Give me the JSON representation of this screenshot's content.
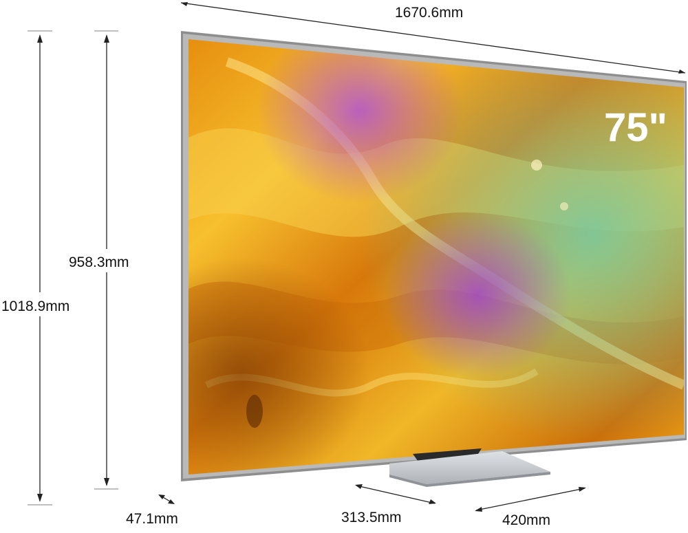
{
  "product": {
    "size_badge": "75\"",
    "colors": {
      "bezel": "#8e8e8e",
      "stand": "#c9ccd0",
      "screen_primary": "#f2a21a",
      "screen_accent": "#a73fc9"
    }
  },
  "dimensions": {
    "width": "1670.6mm",
    "screen_height": "958.3mm",
    "total_height": "1018.9mm",
    "depth": "47.1mm",
    "stand_depth": "313.5mm",
    "stand_width": "420mm"
  }
}
